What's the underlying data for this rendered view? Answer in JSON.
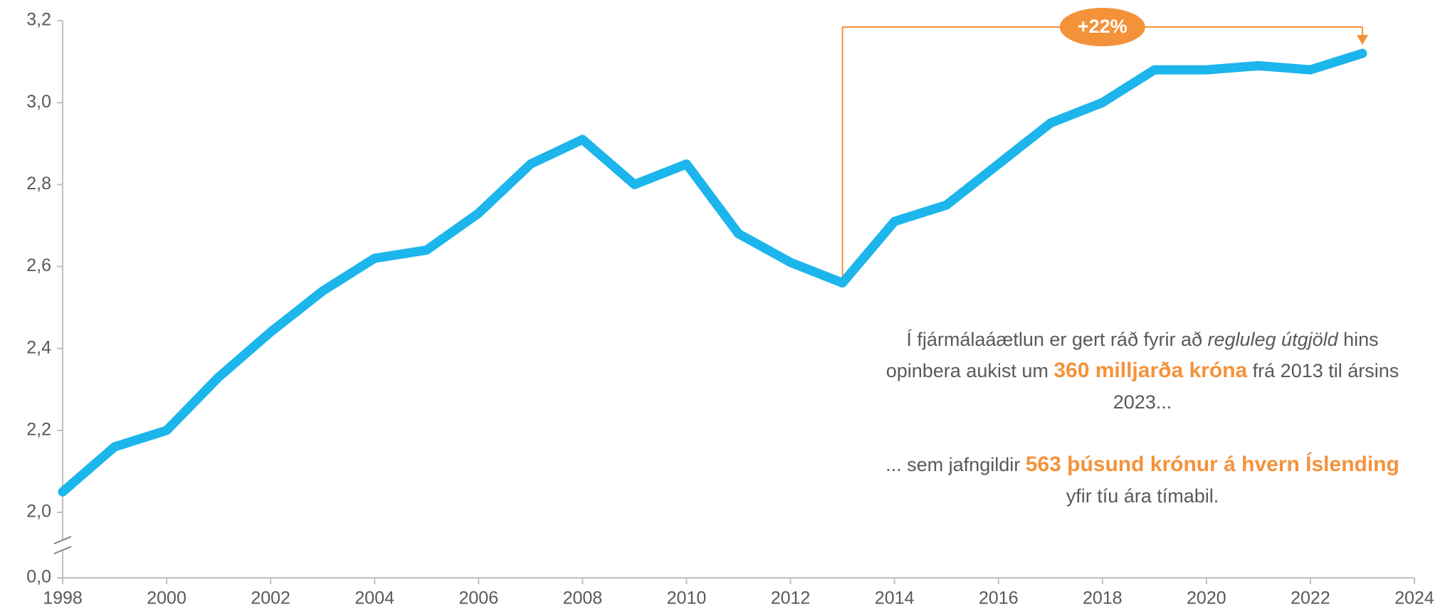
{
  "chart_data": {
    "type": "line",
    "x": [
      1998,
      1999,
      2000,
      2001,
      2002,
      2003,
      2004,
      2005,
      2006,
      2007,
      2008,
      2009,
      2010,
      2011,
      2012,
      2013,
      2014,
      2015,
      2016,
      2017,
      2018,
      2019,
      2020,
      2021,
      2022,
      2023
    ],
    "values": [
      2.05,
      2.16,
      2.2,
      2.33,
      2.44,
      2.54,
      2.62,
      2.64,
      2.73,
      2.85,
      2.91,
      2.8,
      2.85,
      2.68,
      2.61,
      2.56,
      2.71,
      2.75,
      2.85,
      2.95,
      3.0,
      3.08,
      3.08,
      3.09,
      3.08,
      3.12
    ],
    "color": "#1cb5ec",
    "xlim": [
      1998,
      2024
    ],
    "xticks": [
      1998,
      2000,
      2002,
      2004,
      2006,
      2008,
      2010,
      2012,
      2014,
      2016,
      2018,
      2020,
      2022,
      2024
    ],
    "ylim": [
      0,
      3.2
    ],
    "axis_break": [
      0,
      2
    ],
    "yticks": [
      {
        "value": 0,
        "label": "0,0"
      },
      {
        "value": 2,
        "label": "2,0"
      },
      {
        "value": 2.2,
        "label": "2,2"
      },
      {
        "value": 2.4,
        "label": "2,4"
      },
      {
        "value": 2.6,
        "label": "2,6"
      },
      {
        "value": 2.8,
        "label": "2,8"
      },
      {
        "value": 3,
        "label": "3,0"
      },
      {
        "value": 3.2,
        "label": "3,2"
      }
    ],
    "grid": false,
    "annotation": {
      "label": "+22%",
      "from": 2013,
      "to": 2023,
      "color": "#f4923a"
    },
    "note": [
      [
        {
          "text": "Í fjármálaáætlun er gert ráð fyrir að ",
          "style": "plain"
        },
        {
          "text": "regluleg útgjöld",
          "style": "italic"
        },
        {
          "text": " hins opinbera aukist um ",
          "style": "plain"
        },
        {
          "text": "360 milljarða króna",
          "style": "highlight"
        },
        {
          "text": " frá 2013 til ársins 2023...",
          "style": "plain"
        }
      ],
      [
        {
          "text": "... sem jafngildir ",
          "style": "plain"
        },
        {
          "text": "563 þúsund krónur á hvern Íslending",
          "style": "highlight"
        },
        {
          "text": " yfir tíu ára tímabil.",
          "style": "plain"
        }
      ]
    ]
  }
}
